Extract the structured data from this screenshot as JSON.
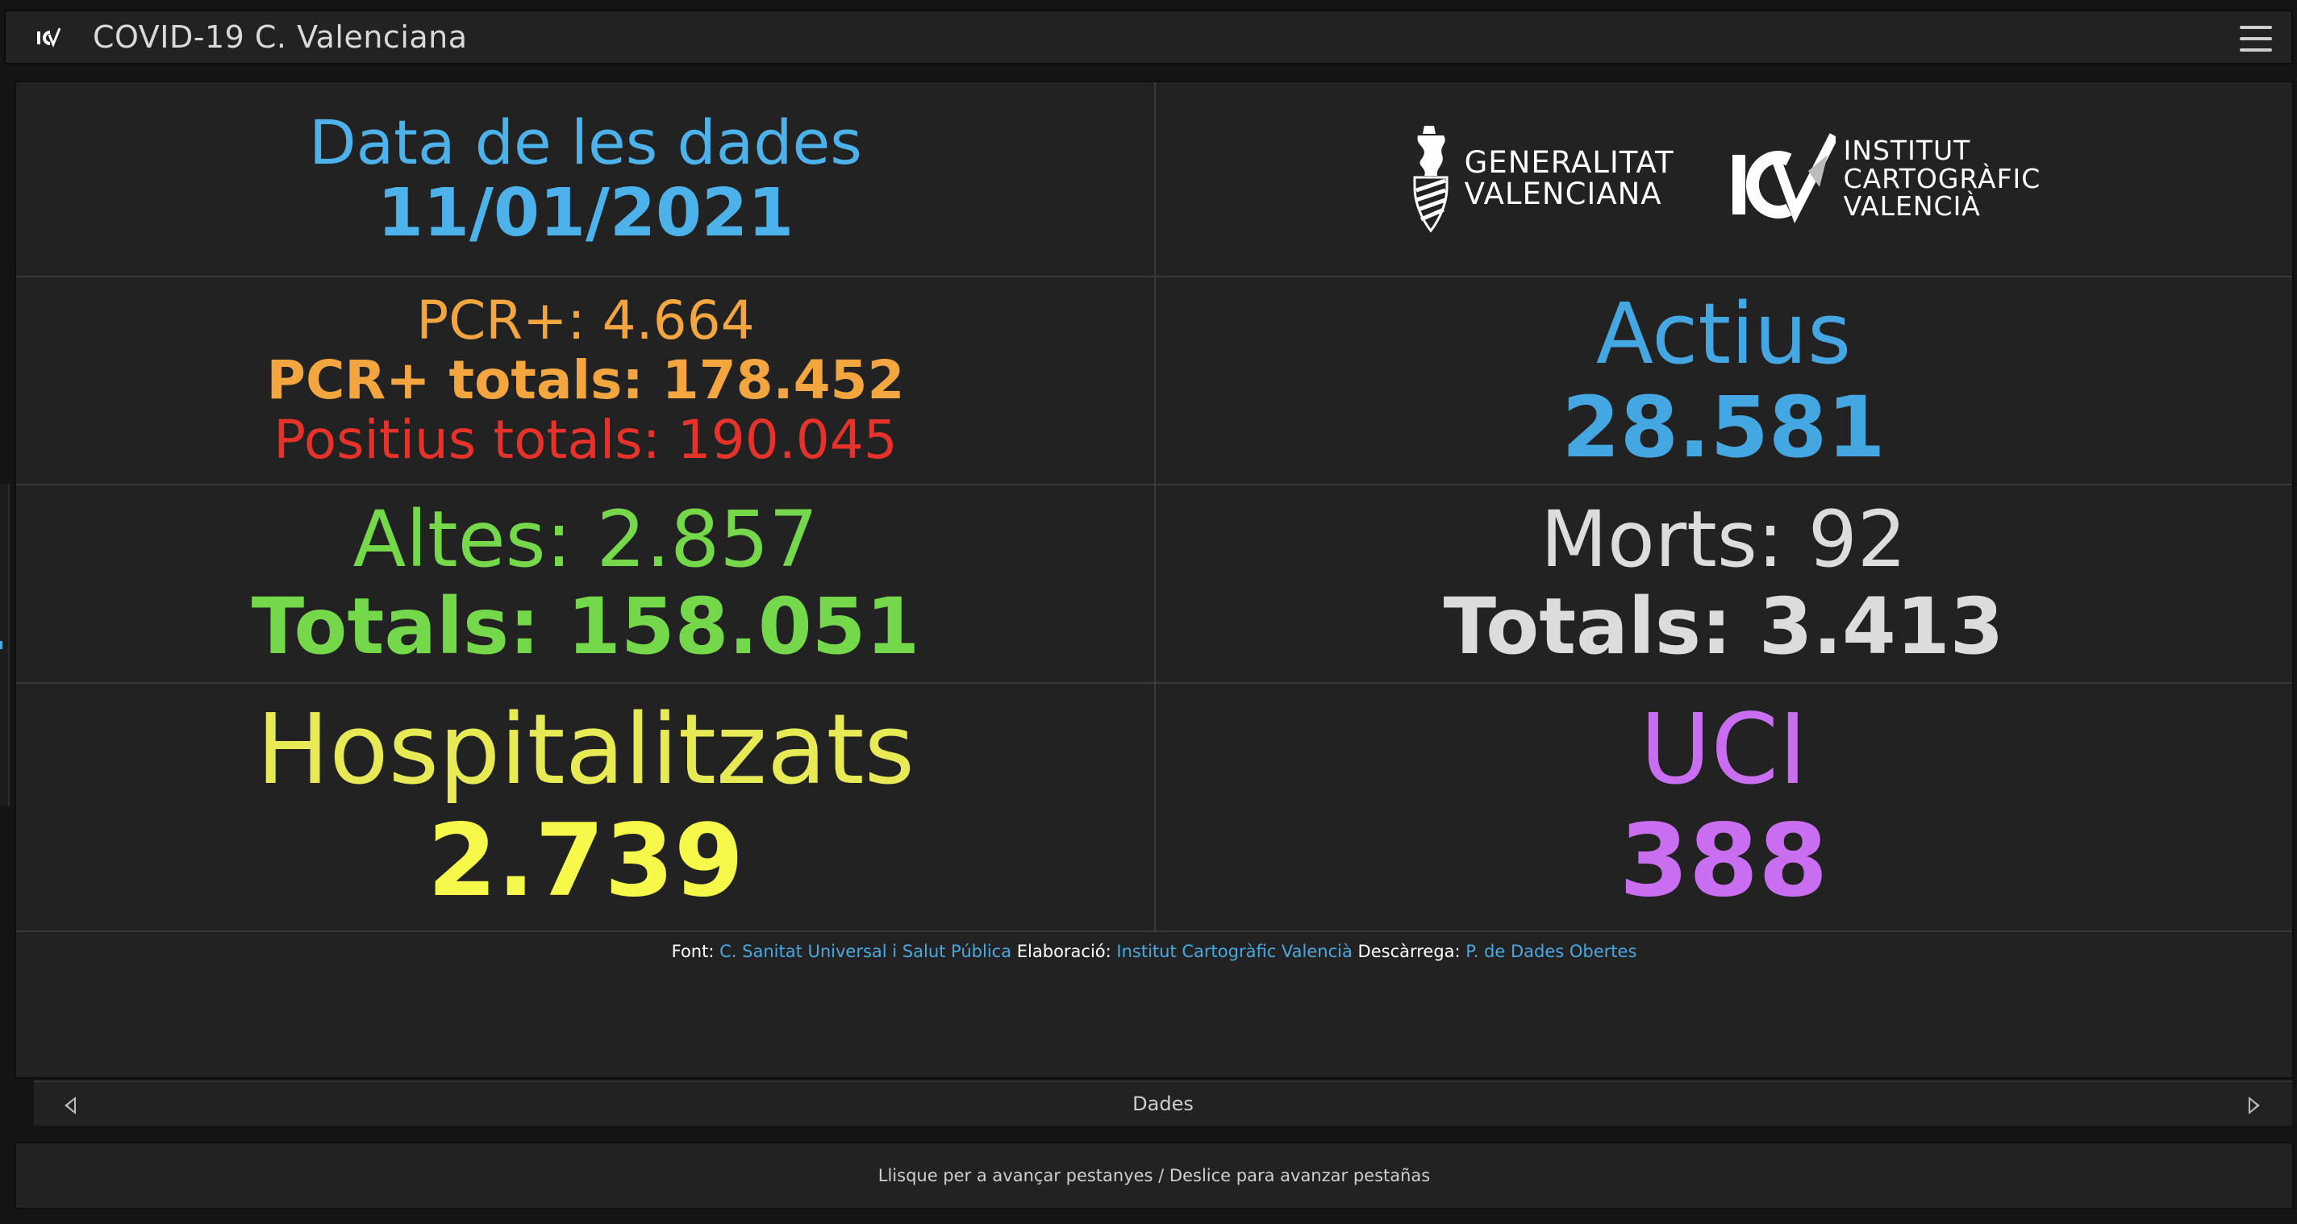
{
  "app": {
    "title": "COVID-19 C. Valenciana",
    "icon": "icv-logo-icon",
    "menu_icon": "hamburger-menu-icon"
  },
  "date_card": {
    "label": "Data de les dades",
    "value": "11/01/2021"
  },
  "logos": {
    "gv": [
      "GENERALITAT",
      "VALENCIANA"
    ],
    "icv": [
      "INSTITUT",
      "CARTOGRÀFIC",
      "VALENCIÀ"
    ]
  },
  "pcr_card": {
    "daily": "PCR+: 4.664",
    "total": "PCR+ totals: 178.452",
    "positive_total": "Positius totals: 190.045"
  },
  "active_card": {
    "label": "Actius",
    "value": "28.581"
  },
  "discharges_card": {
    "daily": "Altes: 2.857",
    "total": "Totals: 158.051"
  },
  "deaths_card": {
    "daily": "Morts: 92",
    "total": "Totals: 3.413"
  },
  "hospital_card": {
    "label": "Hospitalitzats",
    "value": "2.739"
  },
  "icu_card": {
    "label": "UCI",
    "value": "388"
  },
  "footer": {
    "source_label": "Font:",
    "source_link": "C. Sanitat Universal i Salut Pública",
    "made_label": "Elaboració:",
    "made_link": "Institut Cartogràfic Valencià",
    "download_label": "Descàrrega:",
    "download_link": "P. de Dades Obertes"
  },
  "tabs": {
    "current": "Dades"
  },
  "hint": "Llisque per a avançar pestanyes / Deslice para avanzar pestañas",
  "colors": {
    "background": "#222222",
    "blue": "#4db1ea",
    "orange": "#f3a640",
    "red": "#e5322a",
    "green": "#74d84a",
    "yellow": "#f6f94a",
    "purple": "#c96ef0"
  }
}
